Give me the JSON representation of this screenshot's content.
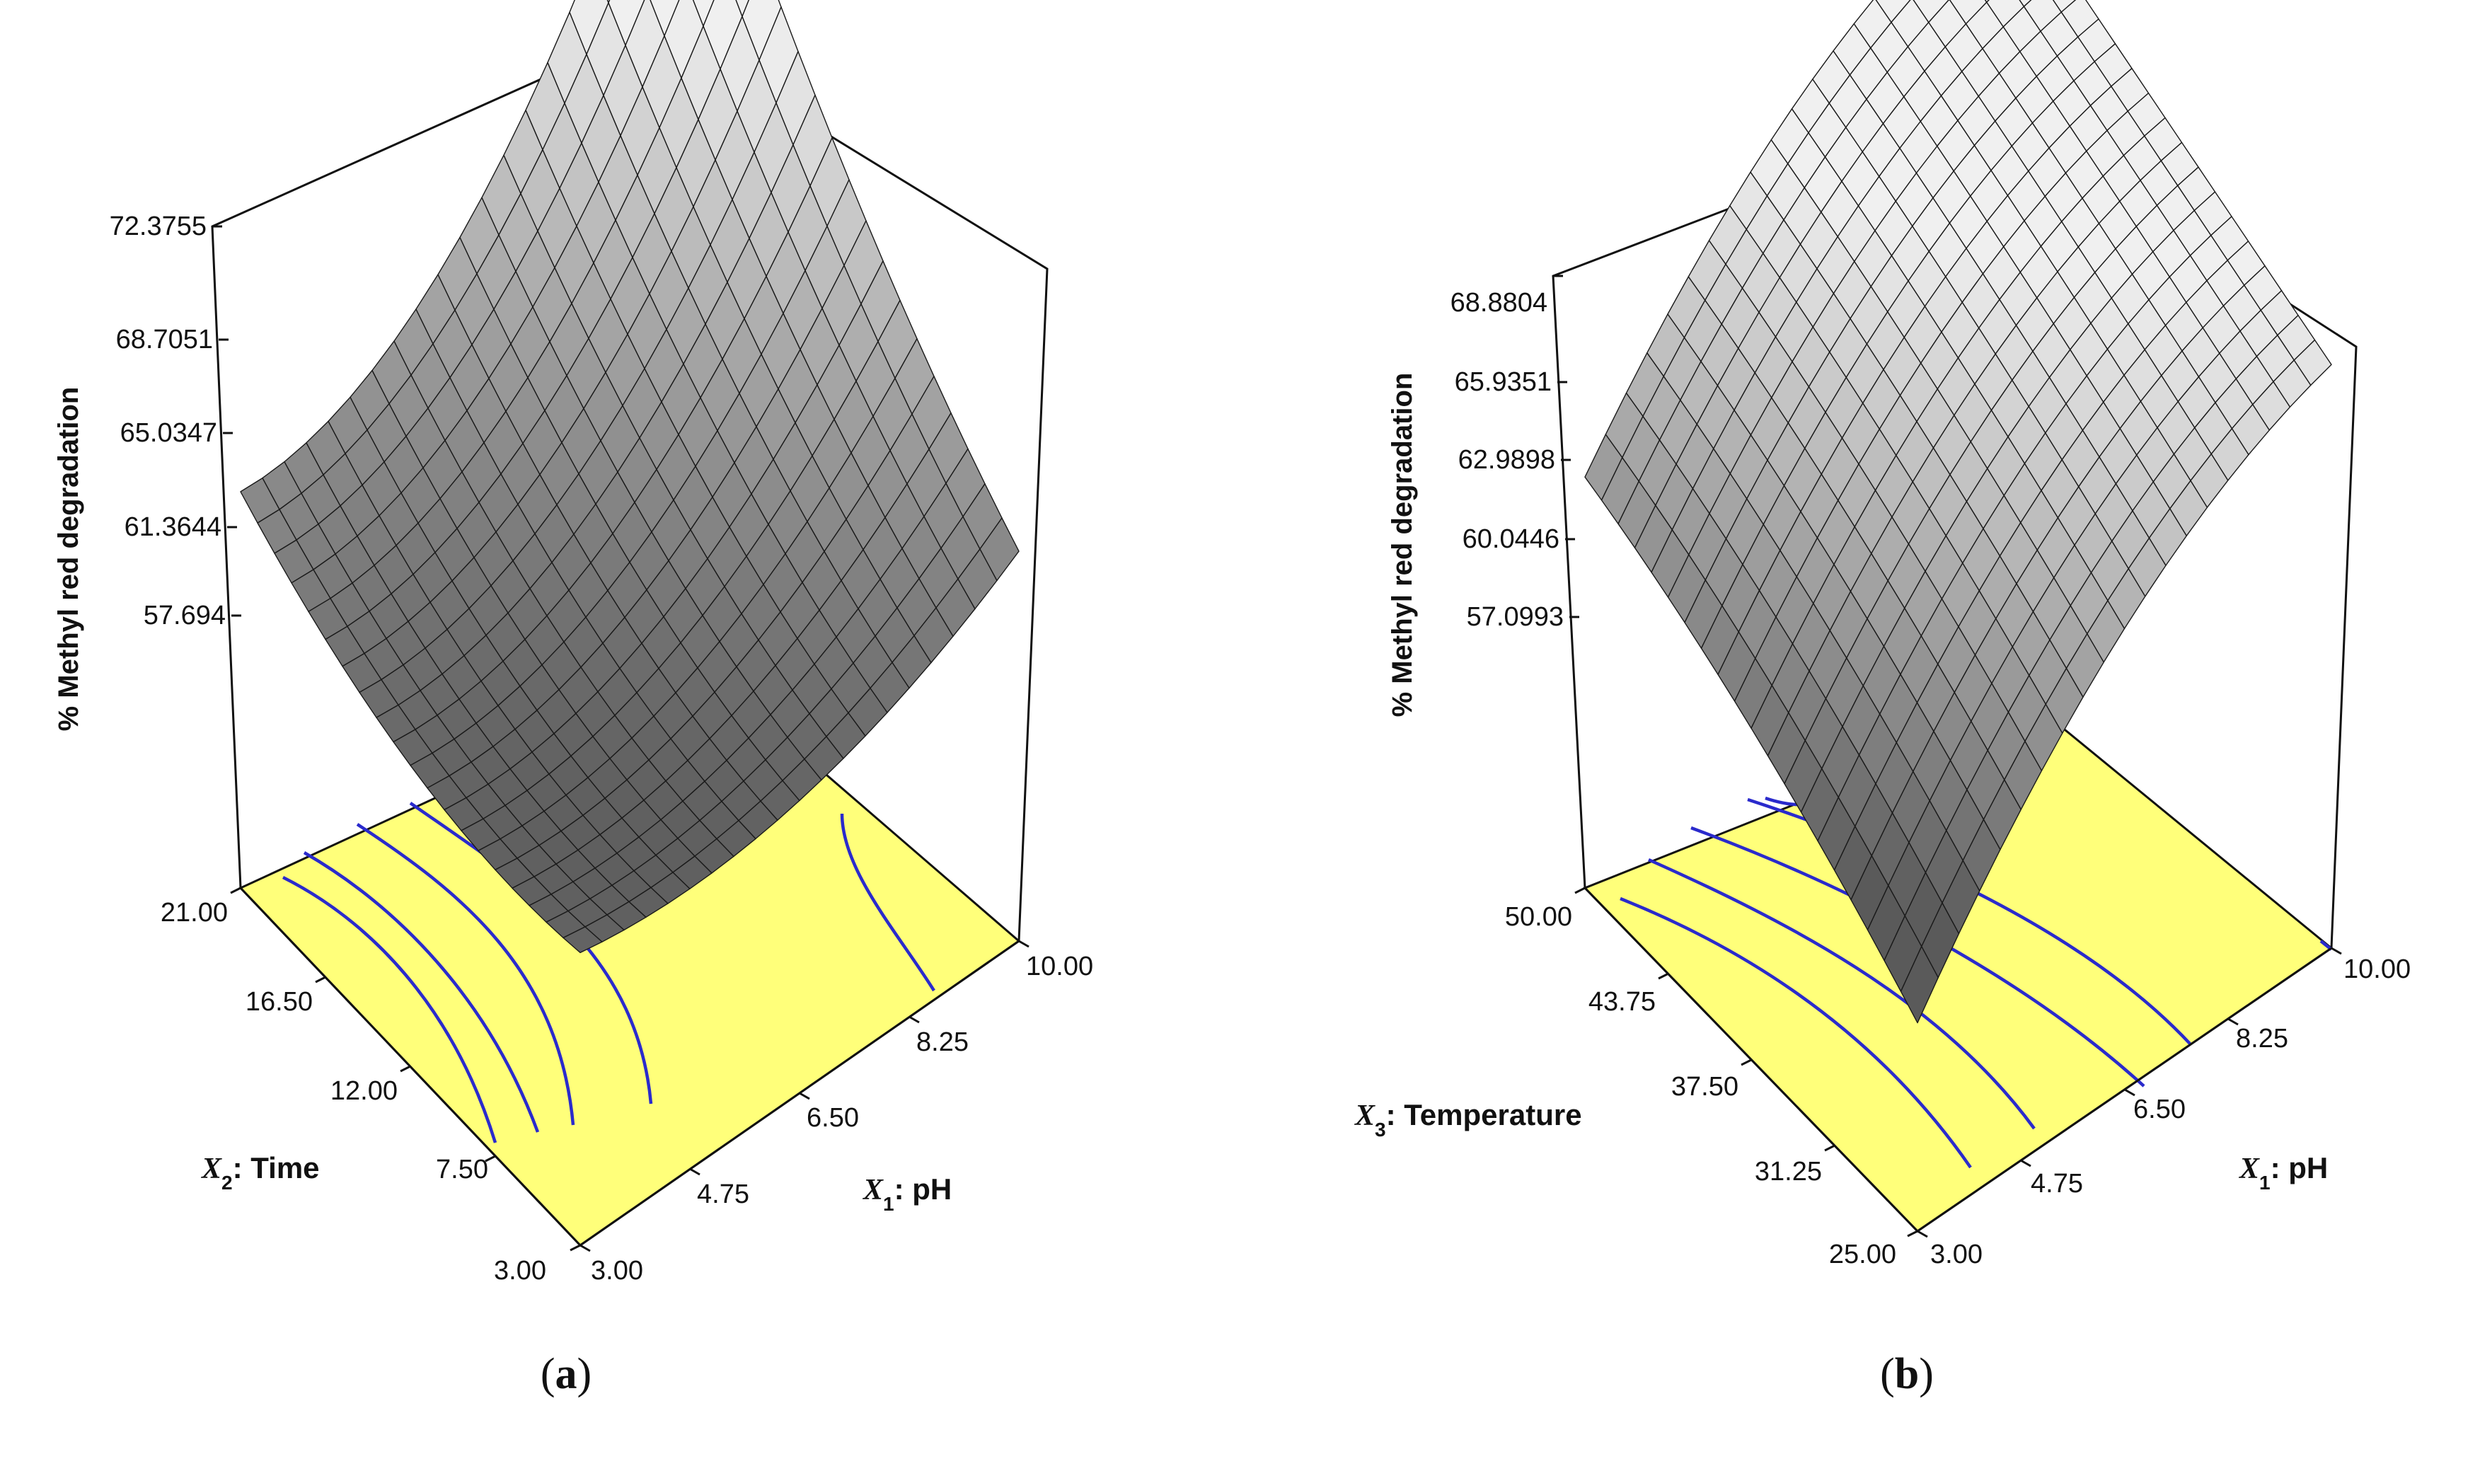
{
  "chart_data": [
    {
      "id": "a",
      "type": "surface3d",
      "panel_label": "a",
      "z_title": "% Methyl red degradation",
      "z_ticks": [
        "57.694",
        "61.3644",
        "65.0347",
        "68.7051",
        "72.3755"
      ],
      "zlim": [
        57.694,
        72.3755
      ],
      "x1_var": "X",
      "x1_sub": "1",
      "x1_name": ": pH",
      "x1_ticks": [
        "3.00",
        "4.75",
        "6.50",
        "8.25",
        "10.00"
      ],
      "x1_range": [
        3.0,
        10.0
      ],
      "x2_var": "X",
      "x2_sub": "2",
      "x2_name": ": Time",
      "x2_ticks": [
        "3.00",
        "7.50",
        "12.00",
        "16.50",
        "21.00"
      ],
      "x2_range": [
        3.0,
        21.0
      ],
      "surface_corner_values": {
        "x1_low_x2_low": 58.4,
        "x1_high_x2_low": 62.5,
        "x1_low_x2_high": 60.8,
        "x1_high_x2_high": 72.3755
      },
      "surface_min_value": 57.9,
      "floor_color": "#ffff7a",
      "contour_color": "#2a2acc"
    },
    {
      "id": "b",
      "type": "surface3d",
      "panel_label": "b",
      "z_title": "% Methyl red degradation",
      "z_ticks": [
        "57.0993",
        "60.0446",
        "62.9898",
        "65.9351",
        "68.8804"
      ],
      "zlim": [
        57.0993,
        68.8804
      ],
      "x1_var": "X",
      "x1_sub": "1",
      "x1_name": ": pH",
      "x1_ticks": [
        "3.00",
        "4.75",
        "6.50",
        "8.25",
        "10.00"
      ],
      "x1_range": [
        3.0,
        10.0
      ],
      "x3_var": "X",
      "x3_sub": "3",
      "x3_name": ": Temperature",
      "x3_ticks": [
        "25.00",
        "31.25",
        "37.50",
        "43.75",
        "50.00"
      ],
      "x3_range": [
        25.0,
        50.0
      ],
      "surface_corner_values": {
        "x1_low_x3_low": 54.0,
        "x1_high_x3_low": 63.5,
        "x1_low_x3_high": 61.0,
        "x1_high_x3_high": 68.8804
      },
      "floor_color": "#ffff7a",
      "contour_color": "#2a2acc"
    }
  ]
}
